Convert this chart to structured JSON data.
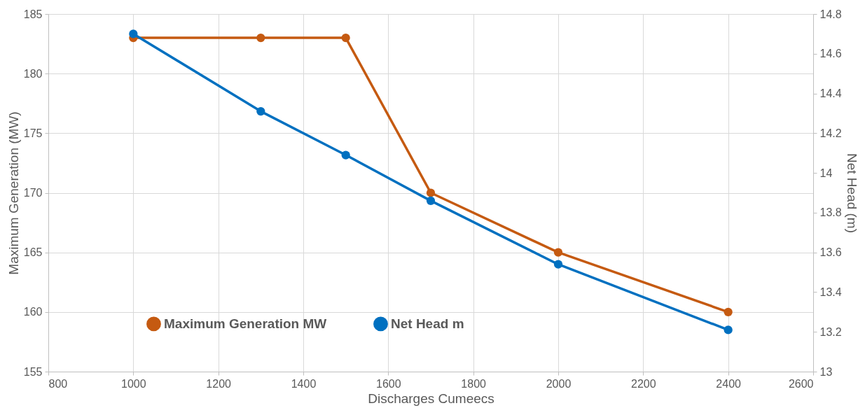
{
  "chart_data": {
    "type": "line",
    "xlabel": "Discharges Cumeecs",
    "ylabel": "Maximum Generation (MW)",
    "y2label": "Net Head (m)",
    "x": [
      1000,
      1300,
      1500,
      1700,
      2000,
      2400
    ],
    "series": [
      {
        "name": "Maximum Generation MW",
        "color": "#c55a11",
        "values": [
          183,
          183,
          183,
          170,
          165,
          160
        ]
      },
      {
        "name": "Net Head m",
        "color": "#0070c0",
        "axis": "y2",
        "values": [
          14.7,
          14.31,
          14.09,
          13.86,
          13.54,
          13.21
        ]
      }
    ],
    "xlim": [
      800,
      2600
    ],
    "xticks": [
      800,
      1000,
      1200,
      1400,
      1600,
      1800,
      2000,
      2200,
      2400,
      2600
    ],
    "ylim": [
      155,
      185
    ],
    "yticks": [
      155,
      160,
      165,
      170,
      175,
      180,
      185
    ],
    "y2lim": [
      13,
      14.8
    ],
    "y2ticks": [
      13,
      13.2,
      13.4,
      13.6,
      13.8,
      14,
      14.2,
      14.4,
      14.6,
      14.8
    ],
    "grid": true,
    "legend": "bottom",
    "marker": "circle",
    "line_style": "solid"
  }
}
